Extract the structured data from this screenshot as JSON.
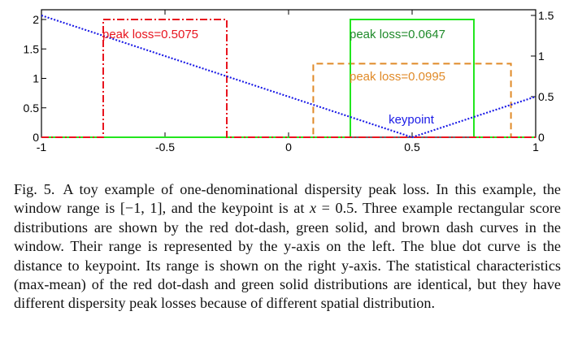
{
  "chart_data": {
    "type": "line",
    "title": "",
    "xlabel": "",
    "ylabel": "",
    "xlim": [
      -1,
      1
    ],
    "ylim_left": [
      0,
      2.15
    ],
    "ylim_right": [
      0,
      1.575
    ],
    "grid": false,
    "x_ticks": [
      -1,
      -0.5,
      0,
      0.5,
      1
    ],
    "x_tick_labels": [
      "-1",
      "-0.5",
      "0",
      "0.5",
      "1"
    ],
    "y_left_ticks": [
      0,
      0.5,
      1,
      1.5,
      2
    ],
    "y_left_tick_labels": [
      "0",
      "0.5",
      "1",
      "1.5",
      "2"
    ],
    "y_right_ticks": [
      0,
      0.5,
      1,
      1.5
    ],
    "y_right_tick_labels": [
      "0",
      "0.5",
      "1",
      "1.5"
    ],
    "series": [
      {
        "name": "red dot-dash distribution",
        "axis": "left",
        "style": "dash-dot",
        "color": "#e8141e",
        "x": [
          -1,
          -0.75,
          -0.75,
          -0.25,
          -0.25,
          1
        ],
        "y": [
          0,
          0,
          2,
          2,
          0,
          0
        ],
        "annotation": "peak loss=0.5075"
      },
      {
        "name": "green solid distribution",
        "axis": "left",
        "style": "solid",
        "color": "#22e61e",
        "x": [
          -1,
          0.25,
          0.25,
          0.75,
          0.75,
          1
        ],
        "y": [
          0,
          0,
          2,
          2,
          0,
          0
        ],
        "annotation": "peak loss=0.0647"
      },
      {
        "name": "brown dash distribution",
        "axis": "left",
        "style": "dash",
        "color": "#e08a28",
        "x": [
          -1,
          0.1,
          0.1,
          0.9,
          0.9,
          1
        ],
        "y": [
          0,
          0,
          1.25,
          1.25,
          0,
          0
        ],
        "annotation": "peak loss=0.0995"
      },
      {
        "name": "distance to keypoint",
        "axis": "right",
        "style": "dot",
        "color": "#1a1ae6",
        "x": [
          -1,
          0.5,
          1
        ],
        "y": [
          1.5,
          0,
          0.5
        ],
        "annotation": "keypoint"
      }
    ],
    "annotations": [
      {
        "text": "peak loss=0.5075",
        "color": "#e8141e"
      },
      {
        "text": "peak loss=0.0647",
        "color": "#1f8a2a"
      },
      {
        "text": "peak loss=0.0995",
        "color": "#e08a28"
      },
      {
        "text": "keypoint",
        "color": "#1a1ae6"
      }
    ]
  },
  "caption": {
    "label": "Fig. 5.",
    "text_1": "A toy example of one-denominational dispersity peak loss. In this example, the window range is [−1, 1], and the keypoint is at ",
    "math_var": "x",
    "text_2": " = 0.5. Three example rectangular score distributions are shown by the red dot-dash, green solid, and brown dash curves in the window. Their range is represented by the y-axis on the left. The blue dot curve is the distance to keypoint. Its range is shown on the right y-axis. The statistical characteristics (max-mean) of the red dot-dash and green solid distributions are identical, but they have different dispersity peak losses because of different spatial distribution."
  }
}
